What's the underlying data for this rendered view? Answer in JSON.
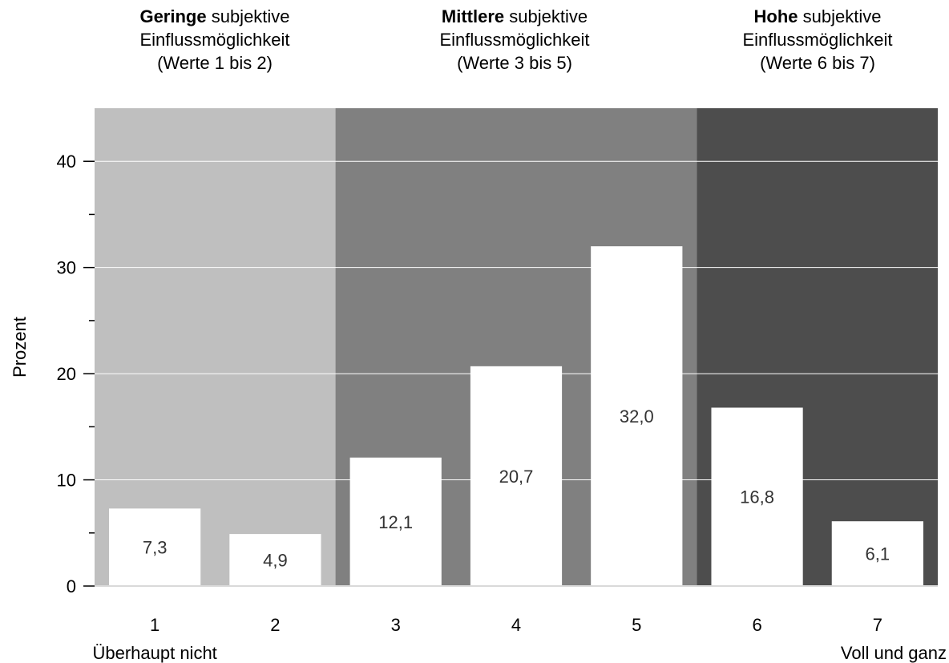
{
  "chart_data": {
    "type": "bar",
    "categories": [
      "1",
      "2",
      "3",
      "4",
      "5",
      "6",
      "7"
    ],
    "values": [
      7.3,
      4.9,
      12.1,
      20.7,
      32.0,
      16.8,
      6.1
    ],
    "value_labels": [
      "7,3",
      "4,9",
      "12,1",
      "20,7",
      "32,0",
      "16,8",
      "6,1"
    ],
    "ylabel": "Prozent",
    "ylim": [
      0,
      45
    ],
    "yticks": [
      0,
      10,
      20,
      30,
      40
    ],
    "ytick_labels": [
      "0",
      "10",
      "20",
      "30",
      "40"
    ],
    "grid": true,
    "x_end_labels": {
      "left": "Überhaupt nicht",
      "right": "Voll und ganz"
    },
    "groups": [
      {
        "bold": "Geringe",
        "rest": " subjektive",
        "line2": "Einflussmöglichkeit",
        "line3": "(Werte 1 bis 2)",
        "from": 1,
        "to": 2,
        "color": "#bfbfbf"
      },
      {
        "bold": "Mittlere",
        "rest": " subjektive",
        "line2": "Einflussmöglichkeit",
        "line3": "(Werte 3 bis 5)",
        "from": 3,
        "to": 5,
        "color": "#808080"
      },
      {
        "bold": "Hohe",
        "rest": " subjektive",
        "line2": "Einflussmöglichkeit",
        "line3": "(Werte 6 bis 7)",
        "from": 6,
        "to": 7,
        "color": "#4d4d4d"
      }
    ],
    "bar_color": "#ffffff"
  }
}
